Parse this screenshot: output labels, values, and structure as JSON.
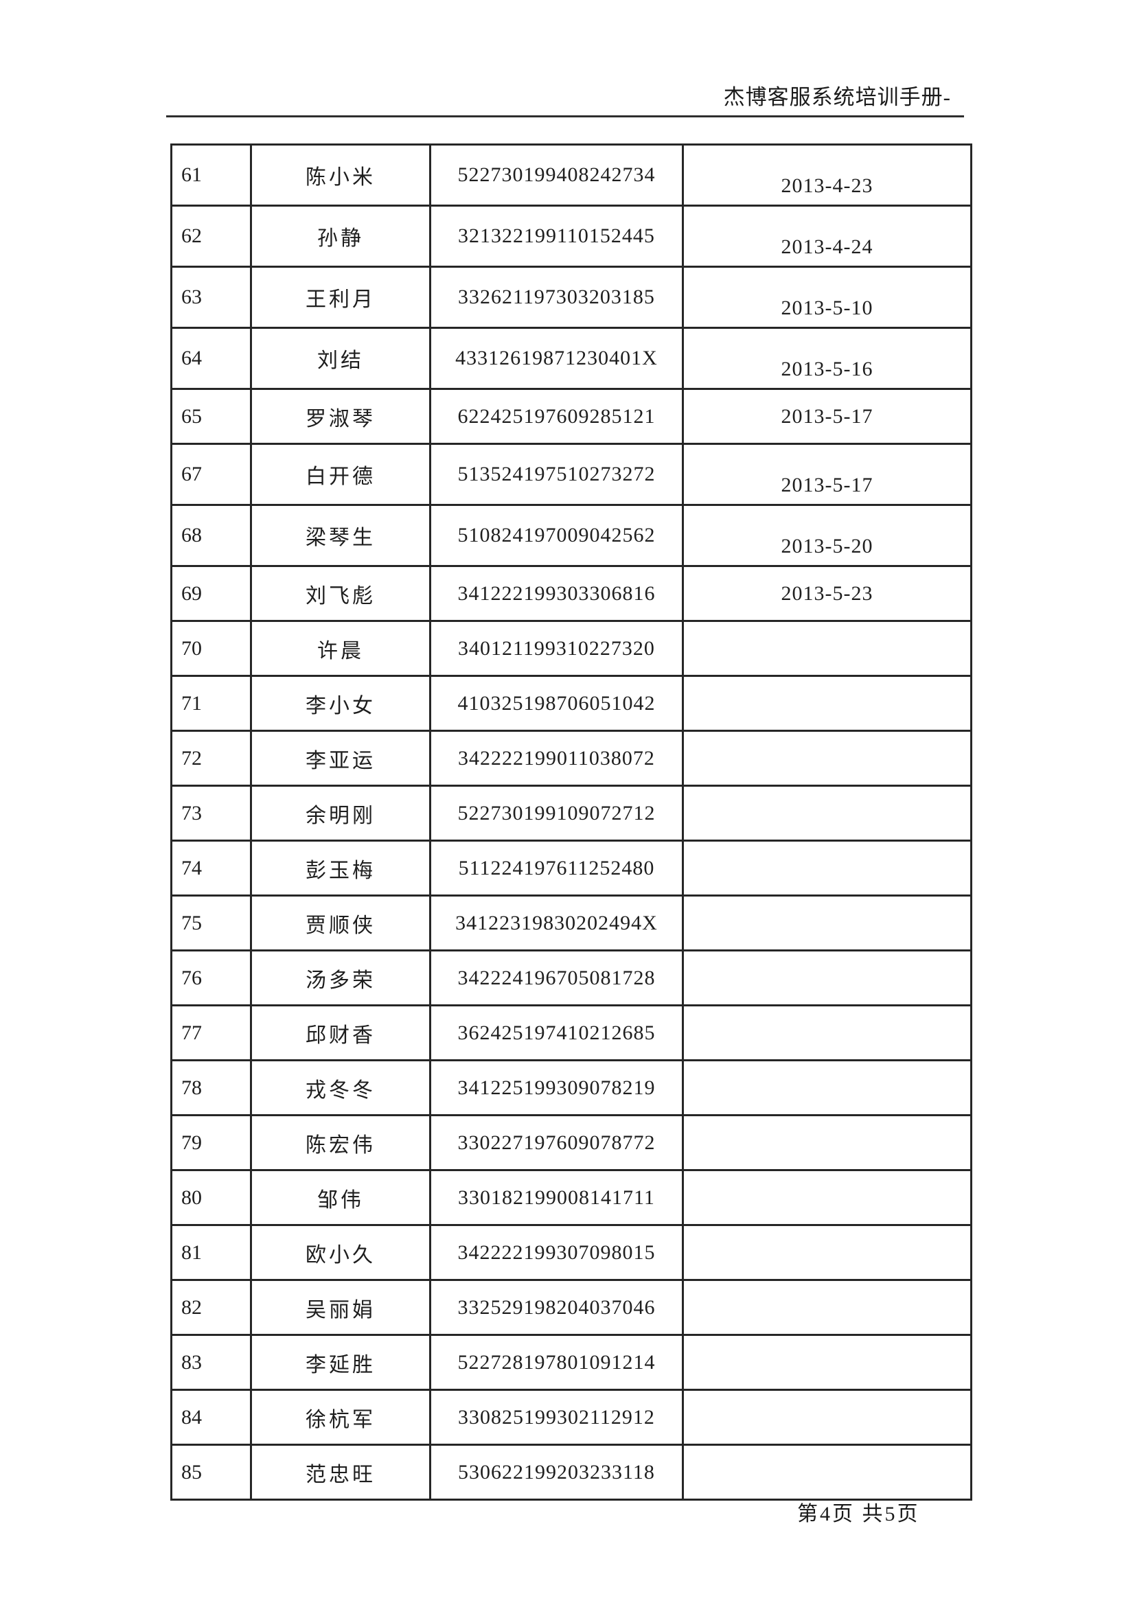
{
  "header": {
    "title": "杰博客服系统培训手册-"
  },
  "footer": {
    "page_indicator": "第4页 共5页"
  },
  "table": {
    "rows": [
      {
        "no": "61",
        "name": "陈小米",
        "id_number": "522730199408242734",
        "date": "2013-4-23",
        "date_position": "low"
      },
      {
        "no": "62",
        "name": "孙静",
        "id_number": "321322199110152445",
        "date": "2013-4-24",
        "date_position": "low"
      },
      {
        "no": "63",
        "name": "王利月",
        "id_number": "332621197303203185",
        "date": "2013-5-10",
        "date_position": "low"
      },
      {
        "no": "64",
        "name": "刘结",
        "id_number": "43312619871230401X",
        "date": "2013-5-16",
        "date_position": "low"
      },
      {
        "no": "65",
        "name": "罗淑琴",
        "id_number": "622425197609285121",
        "date": "2013-5-17",
        "date_position": "middle"
      },
      {
        "no": "67",
        "name": "白开德",
        "id_number": "513524197510273272",
        "date": "2013-5-17",
        "date_position": "low"
      },
      {
        "no": "68",
        "name": "梁琴生",
        "id_number": "510824197009042562",
        "date": "2013-5-20",
        "date_position": "low"
      },
      {
        "no": "69",
        "name": "刘飞彪",
        "id_number": "341222199303306816",
        "date": "2013-5-23",
        "date_position": "middle"
      },
      {
        "no": "70",
        "name": "许晨",
        "id_number": "340121199310227320",
        "date": "",
        "date_position": "middle"
      },
      {
        "no": "71",
        "name": "李小女",
        "id_number": "410325198706051042",
        "date": "",
        "date_position": "middle"
      },
      {
        "no": "72",
        "name": "李亚运",
        "id_number": "342222199011038072",
        "date": "",
        "date_position": "middle"
      },
      {
        "no": "73",
        "name": "余明刚",
        "id_number": "522730199109072712",
        "date": "",
        "date_position": "middle"
      },
      {
        "no": "74",
        "name": "彭玉梅",
        "id_number": "511224197611252480",
        "date": "",
        "date_position": "middle"
      },
      {
        "no": "75",
        "name": "贾顺侠",
        "id_number": "34122319830202494X",
        "date": "",
        "date_position": "middle"
      },
      {
        "no": "76",
        "name": "汤多荣",
        "id_number": "342224196705081728",
        "date": "",
        "date_position": "middle"
      },
      {
        "no": "77",
        "name": "邱财香",
        "id_number": "362425197410212685",
        "date": "",
        "date_position": "middle"
      },
      {
        "no": "78",
        "name": "戎冬冬",
        "id_number": "341225199309078219",
        "date": "",
        "date_position": "middle"
      },
      {
        "no": "79",
        "name": "陈宏伟",
        "id_number": "330227197609078772",
        "date": "",
        "date_position": "middle"
      },
      {
        "no": "80",
        "name": "邹伟",
        "id_number": "330182199008141711",
        "date": "",
        "date_position": "middle"
      },
      {
        "no": "81",
        "name": "欧小久",
        "id_number": "342222199307098015",
        "date": "",
        "date_position": "middle"
      },
      {
        "no": "82",
        "name": "吴丽娟",
        "id_number": "332529198204037046",
        "date": "",
        "date_position": "middle"
      },
      {
        "no": "83",
        "name": "李延胜",
        "id_number": "522728197801091214",
        "date": "",
        "date_position": "middle"
      },
      {
        "no": "84",
        "name": "徐杭军",
        "id_number": "330825199302112912",
        "date": "",
        "date_position": "middle"
      },
      {
        "no": "85",
        "name": "范忠旺",
        "id_number": "530622199203233118",
        "date": "",
        "date_position": "middle"
      }
    ]
  }
}
